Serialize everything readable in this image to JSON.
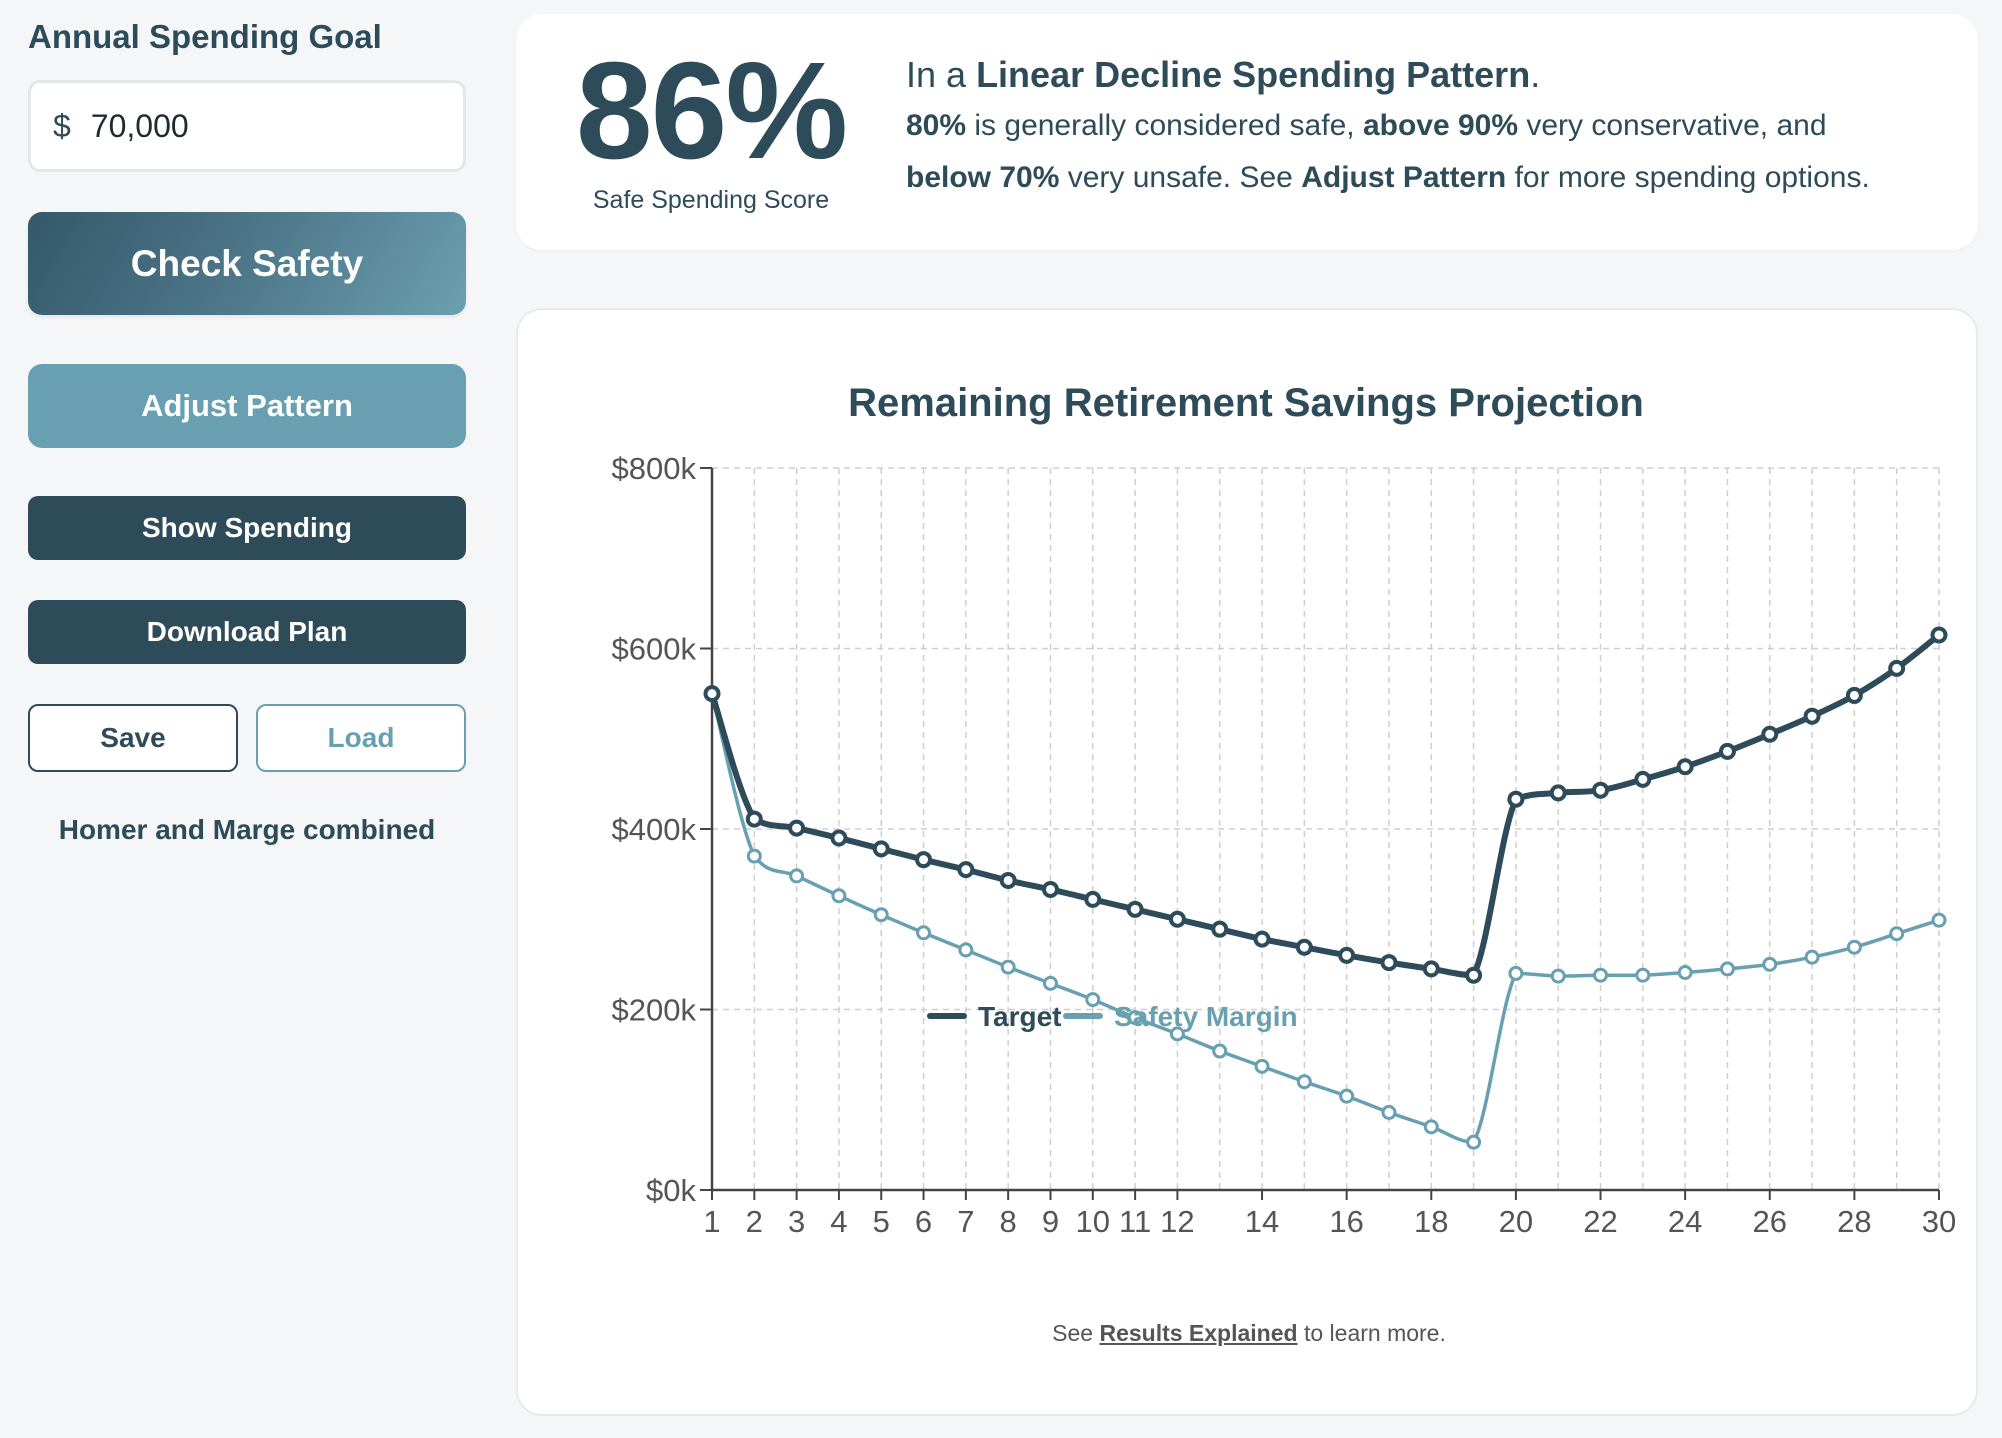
{
  "sidebar": {
    "goal_label": "Annual Spending Goal",
    "goal_currency": "$",
    "goal_value": "70,000",
    "check_label": "Check Safety",
    "adjust_label": "Adjust Pattern",
    "show_label": "Show Spending",
    "download_label": "Download Plan",
    "save_label": "Save",
    "load_label": "Load",
    "profile_text": "Homer and Marge combined"
  },
  "score": {
    "value": "86%",
    "label": "Safe Spending Score",
    "line1_prefix": "In a ",
    "line1_pattern": "Linear Decline Spending Pattern",
    "line1_suffix": ".",
    "safe_pct": "80%",
    "safe_text": " is generally considered safe, ",
    "conservative_pct": "above 90%",
    "conservative_text": " very conservative, and",
    "unsafe_pct": "below 70%",
    "unsafe_text": " very unsafe. See ",
    "adjust_ref": "Adjust Pattern",
    "options_text": " for more spending options."
  },
  "footnote": {
    "prefix": "See ",
    "link": "Results Explained",
    "suffix": " to learn more."
  },
  "colors": {
    "target": "#2e4b5a",
    "safety": "#68a0b1",
    "grid": "#cfcfcf"
  },
  "chart_data": {
    "type": "line",
    "title": "Remaining Retirement Savings Projection",
    "x": [
      1,
      2,
      3,
      4,
      5,
      6,
      7,
      8,
      9,
      10,
      11,
      12,
      13,
      14,
      15,
      16,
      17,
      18,
      19,
      20,
      21,
      22,
      23,
      24,
      25,
      26,
      27,
      28,
      29,
      30
    ],
    "x_tick_labels": [
      "1",
      "2",
      "3",
      "4",
      "5",
      "6",
      "7",
      "8",
      "9",
      "10",
      "11",
      "12",
      "14",
      "16",
      "18",
      "20",
      "22",
      "24",
      "26",
      "28",
      "30"
    ],
    "ylim": [
      0,
      800000
    ],
    "y_ticks": [
      0,
      200000,
      400000,
      600000,
      800000
    ],
    "y_tick_labels": [
      "$0k",
      "$200k",
      "$400k",
      "$600k",
      "$800k"
    ],
    "grid": true,
    "legend_position": "bottom",
    "series": [
      {
        "name": "Target",
        "values": [
          550000,
          411000,
          401000,
          390000,
          378000,
          366000,
          355000,
          343000,
          333000,
          322000,
          311000,
          300000,
          289000,
          278000,
          269000,
          260000,
          252000,
          245000,
          238000,
          433000,
          440000,
          443000,
          455000,
          469000,
          486000,
          505000,
          525000,
          548000,
          578000,
          615000
        ]
      },
      {
        "name": "Safety Margin",
        "values": [
          550000,
          370000,
          348000,
          326000,
          305000,
          285000,
          266000,
          247000,
          229000,
          211000,
          191000,
          173000,
          154000,
          137000,
          120000,
          104000,
          86000,
          70000,
          53000,
          240000,
          237000,
          238000,
          238000,
          241000,
          245000,
          250000,
          258000,
          269000,
          284000,
          299000
        ]
      }
    ]
  }
}
